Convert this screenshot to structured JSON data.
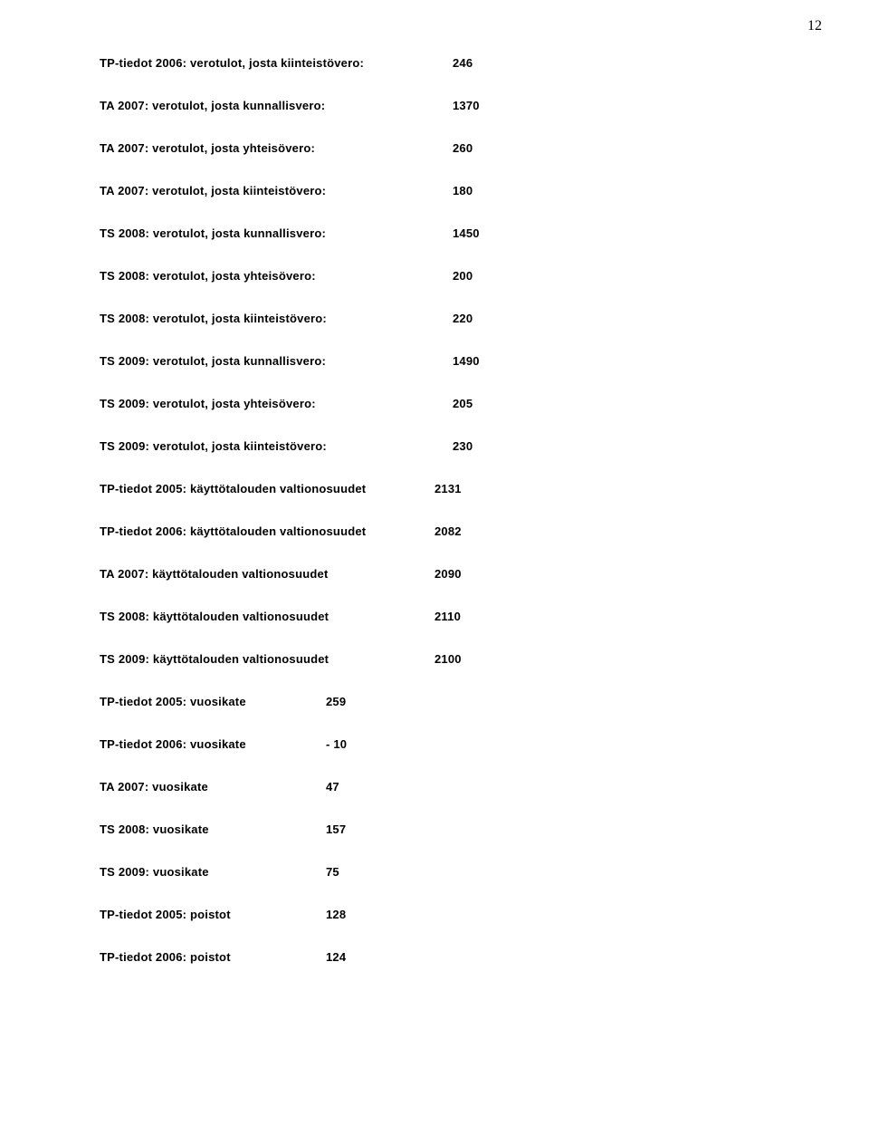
{
  "page_number": "12",
  "rows": [
    {
      "label": "TP-tiedot 2006: verotulot, josta kiinteistövero:",
      "value": "246",
      "label_class": "label-a"
    },
    {
      "label": "TA 2007: verotulot, josta kunnallisvero:",
      "value": "1370",
      "label_class": "label-a"
    },
    {
      "label": "TA 2007: verotulot, josta yhteisövero:",
      "value": "260",
      "label_class": "label-a"
    },
    {
      "label": "TA 2007: verotulot, josta kiinteistövero:",
      "value": "180",
      "label_class": "label-a"
    },
    {
      "label": "TS 2008: verotulot, josta kunnallisvero:",
      "value": "1450",
      "label_class": "label-a"
    },
    {
      "label": "TS 2008: verotulot, josta yhteisövero:",
      "value": "200",
      "label_class": "label-a"
    },
    {
      "label": "TS 2008: verotulot, josta kiinteistövero:",
      "value": "220",
      "label_class": "label-a"
    },
    {
      "label": "TS 2009: verotulot, josta kunnallisvero:",
      "value": "1490",
      "label_class": "label-a"
    },
    {
      "label": "TS 2009: verotulot, josta yhteisövero:",
      "value": "205",
      "label_class": "label-a"
    },
    {
      "label": "TS 2009: verotulot, josta kiinteistövero:",
      "value": "230",
      "label_class": "label-a"
    },
    {
      "label": "TP-tiedot 2005: käyttötalouden valtionosuudet",
      "value": "2131",
      "label_class": "label-b"
    },
    {
      "label": "TP-tiedot 2006: käyttötalouden valtionosuudet",
      "value": "2082",
      "label_class": "label-b"
    },
    {
      "label": "TA 2007: käyttötalouden valtionosuudet",
      "value": "2090",
      "label_class": "label-b"
    },
    {
      "label": "TS 2008: käyttötalouden valtionosuudet",
      "value": "2110",
      "label_class": "label-b"
    },
    {
      "label": "TS 2009: käyttötalouden valtionosuudet",
      "value": "2100",
      "label_class": "label-b"
    },
    {
      "label": "TP-tiedot 2005: vuosikate",
      "value": "259",
      "label_class": "label-c"
    },
    {
      "label": "TP-tiedot 2006: vuosikate",
      "value": "- 10",
      "label_class": "label-c"
    },
    {
      "label": "TA 2007: vuosikate",
      "value": "47",
      "label_class": "label-c"
    },
    {
      "label": "TS 2008: vuosikate",
      "value": "157",
      "label_class": "label-c"
    },
    {
      "label": "TS 2009: vuosikate",
      "value": "75",
      "label_class": "label-c"
    },
    {
      "label": "TP-tiedot 2005: poistot",
      "value": "128",
      "label_class": "label-c"
    },
    {
      "label": "TP-tiedot 2006: poistot",
      "value": "124",
      "label_class": "label-c"
    }
  ]
}
